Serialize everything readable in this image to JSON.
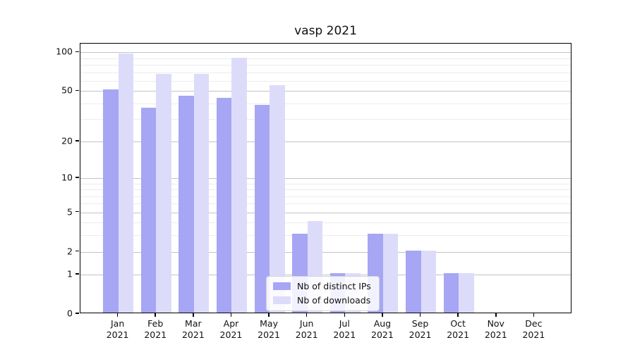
{
  "chart_data": {
    "type": "bar",
    "title": "vasp 2021",
    "categories": [
      "Jan",
      "Feb",
      "Mar",
      "Apr",
      "May",
      "Jun",
      "Jul",
      "Aug",
      "Sep",
      "Oct",
      "Nov",
      "Dec"
    ],
    "category_second_line": "2021",
    "series": [
      {
        "name": "Nb of distinct IPs",
        "color": "#a6a6f5",
        "values": [
          50,
          36,
          45,
          43,
          38,
          3,
          1,
          3,
          2,
          1,
          0,
          0
        ]
      },
      {
        "name": "Nb of downloads",
        "color": "#dcdcfa",
        "values": [
          95,
          66,
          66,
          89,
          54,
          4,
          1,
          3,
          2,
          1,
          0,
          0
        ]
      }
    ],
    "y_scale": "log1p",
    "y_ticks": [
      100,
      50,
      20,
      10,
      5,
      2,
      1,
      0
    ],
    "y_minor_ticks": [
      3,
      4,
      6,
      7,
      8,
      9,
      30,
      40,
      60,
      70,
      80,
      90
    ],
    "y_max": 116,
    "ylim": [
      0,
      116
    ],
    "xlabel": "",
    "ylabel": "",
    "grid": true,
    "legend_position": "lower center"
  }
}
